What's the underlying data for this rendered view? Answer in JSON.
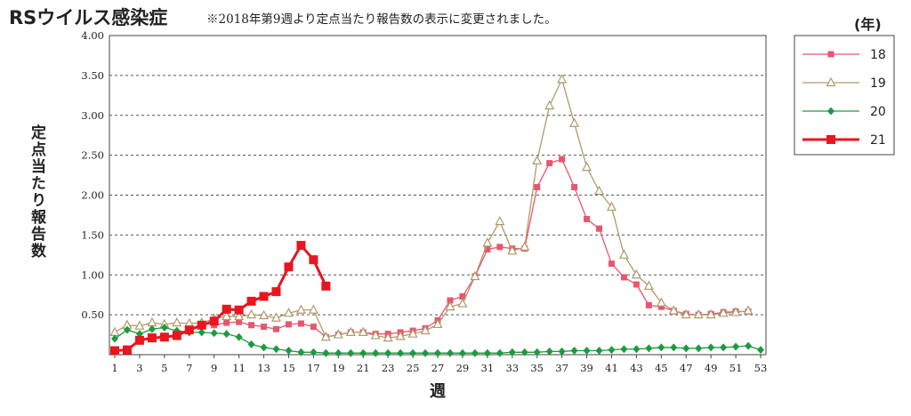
{
  "title": "RSウイルス感染症",
  "subtitle": "※2018年第9週より定点当たり報告数の表示に変更されました。",
  "chart_data": {
    "type": "line",
    "ylabel": "定点当たり報告数",
    "xlabel": "週",
    "legend_unit": "(年)",
    "legend_position": "right",
    "ylim": [
      0,
      4.0
    ],
    "xlim": [
      1,
      53
    ],
    "yticks": [
      "4.00",
      "3.50",
      "3.00",
      "2.50",
      "2.00",
      "1.50",
      "1.00",
      "0.50"
    ],
    "ytick_values": [
      4.0,
      3.5,
      3.0,
      2.5,
      2.0,
      1.5,
      1.0,
      0.5
    ],
    "xticks": [
      "1",
      "3",
      "5",
      "7",
      "9",
      "11",
      "13",
      "15",
      "17",
      "19",
      "21",
      "23",
      "25",
      "27",
      "29",
      "31",
      "33",
      "35",
      "37",
      "39",
      "41",
      "43",
      "45",
      "47",
      "49",
      "51",
      "53"
    ],
    "xtick_values": [
      1,
      3,
      5,
      7,
      9,
      11,
      13,
      15,
      17,
      19,
      21,
      23,
      25,
      27,
      29,
      31,
      33,
      35,
      37,
      39,
      41,
      43,
      45,
      47,
      49,
      51,
      53
    ],
    "grid": "horizontal-dashed",
    "series": [
      {
        "name": "18",
        "color": "#e8566d",
        "marker": "square",
        "x": [
          9,
          10,
          11,
          12,
          13,
          14,
          15,
          16,
          17,
          18,
          19,
          20,
          21,
          22,
          23,
          24,
          25,
          26,
          27,
          28,
          29,
          30,
          31,
          32,
          33,
          34,
          35,
          36,
          37,
          38,
          39,
          40,
          41,
          42,
          43,
          44,
          45,
          46,
          47,
          48,
          49,
          50,
          51,
          52
        ],
        "values": [
          0.37,
          0.4,
          0.41,
          0.37,
          0.35,
          0.32,
          0.38,
          0.39,
          0.35,
          0.22,
          0.25,
          0.28,
          0.28,
          0.26,
          0.26,
          0.28,
          0.3,
          0.33,
          0.43,
          0.68,
          0.73,
          0.98,
          1.32,
          1.35,
          1.33,
          1.33,
          2.1,
          2.4,
          2.45,
          2.1,
          1.7,
          1.58,
          1.14,
          0.97,
          0.88,
          0.62,
          0.6,
          0.55,
          0.51,
          0.5,
          0.51,
          0.53,
          0.54,
          0.54
        ]
      },
      {
        "name": "19",
        "color": "#b09a6c",
        "marker": "triangle",
        "x": [
          1,
          2,
          3,
          4,
          5,
          6,
          7,
          8,
          9,
          10,
          11,
          12,
          13,
          14,
          15,
          16,
          17,
          18,
          19,
          20,
          21,
          22,
          23,
          24,
          25,
          26,
          27,
          28,
          29,
          30,
          31,
          32,
          33,
          34,
          35,
          36,
          37,
          38,
          39,
          40,
          41,
          42,
          43,
          44,
          45,
          46,
          47,
          48,
          49,
          50,
          51,
          52
        ],
        "values": [
          0.28,
          0.37,
          0.36,
          0.4,
          0.38,
          0.4,
          0.39,
          0.4,
          0.45,
          0.48,
          0.48,
          0.5,
          0.49,
          0.46,
          0.52,
          0.56,
          0.56,
          0.22,
          0.25,
          0.28,
          0.28,
          0.24,
          0.21,
          0.23,
          0.26,
          0.3,
          0.38,
          0.6,
          0.64,
          0.98,
          1.4,
          1.67,
          1.3,
          1.35,
          2.43,
          3.12,
          3.45,
          2.9,
          2.35,
          2.05,
          1.85,
          1.25,
          1.0,
          0.86,
          0.65,
          0.55,
          0.5,
          0.5,
          0.5,
          0.52,
          0.53,
          0.55
        ]
      },
      {
        "name": "20",
        "color": "#1d9a3f",
        "marker": "diamond",
        "x": [
          1,
          2,
          3,
          4,
          5,
          6,
          7,
          8,
          9,
          10,
          11,
          12,
          13,
          14,
          15,
          16,
          17,
          18,
          19,
          20,
          21,
          22,
          23,
          24,
          25,
          26,
          27,
          28,
          29,
          30,
          31,
          32,
          33,
          34,
          35,
          36,
          37,
          38,
          39,
          40,
          41,
          42,
          43,
          44,
          45,
          46,
          47,
          48,
          49,
          50,
          51,
          52,
          53
        ],
        "values": [
          0.2,
          0.31,
          0.26,
          0.32,
          0.34,
          0.3,
          0.28,
          0.28,
          0.27,
          0.26,
          0.22,
          0.13,
          0.09,
          0.07,
          0.05,
          0.03,
          0.03,
          0.02,
          0.02,
          0.02,
          0.02,
          0.02,
          0.02,
          0.02,
          0.02,
          0.02,
          0.02,
          0.02,
          0.02,
          0.02,
          0.02,
          0.02,
          0.03,
          0.03,
          0.03,
          0.04,
          0.04,
          0.05,
          0.05,
          0.05,
          0.06,
          0.07,
          0.07,
          0.08,
          0.09,
          0.09,
          0.08,
          0.08,
          0.09,
          0.09,
          0.1,
          0.11,
          0.06
        ]
      },
      {
        "name": "21",
        "color": "#e8161f",
        "marker": "square-large",
        "x": [
          1,
          2,
          3,
          4,
          5,
          6,
          7,
          8,
          9,
          10,
          11,
          12,
          13,
          14,
          15,
          16,
          17,
          18
        ],
        "values": [
          0.05,
          0.06,
          0.18,
          0.21,
          0.22,
          0.24,
          0.31,
          0.37,
          0.42,
          0.57,
          0.56,
          0.67,
          0.73,
          0.79,
          1.1,
          1.37,
          1.19,
          0.86
        ]
      }
    ]
  }
}
